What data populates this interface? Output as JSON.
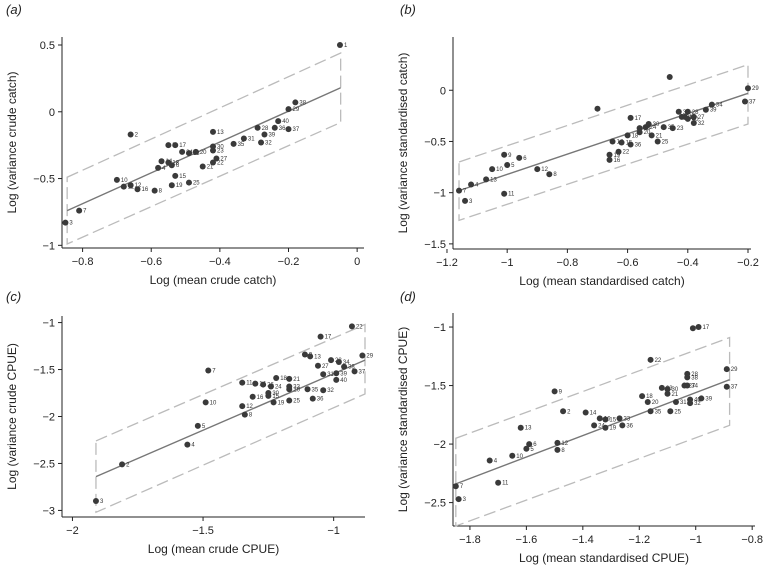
{
  "chart_data": [
    {
      "type": "scatter",
      "panel": "(a)",
      "xlabel": "Log (mean crude catch)",
      "ylabel": "Log (variance crude catch)",
      "xlim": [
        -0.86,
        0.02
      ],
      "ylim": [
        -1.02,
        0.56
      ],
      "xticks": [
        -0.8,
        -0.6,
        -0.4,
        -0.2,
        0
      ],
      "xtick_labels": [
        "−0.8",
        "−0.6",
        "−0.4",
        "−0.2",
        "0"
      ],
      "yticks": [
        -1,
        -0.5,
        0,
        0.5
      ],
      "ytick_labels": [
        "−1",
        "−0.5",
        "0",
        "0.5"
      ],
      "fit": {
        "x": [
          -0.845,
          -0.048
        ],
        "y": [
          -0.74,
          0.18
        ]
      },
      "band_upper": {
        "x": [
          -0.845,
          -0.048
        ],
        "y": [
          -0.49,
          0.44
        ]
      },
      "band_lower": {
        "x": [
          -0.845,
          -0.048
        ],
        "y": [
          -0.99,
          -0.08
        ]
      },
      "points": [
        {
          "label": "1",
          "x": -0.05,
          "y": 0.5
        },
        {
          "label": "2",
          "x": -0.66,
          "y": -0.17
        },
        {
          "label": "3",
          "x": -0.85,
          "y": -0.83
        },
        {
          "label": "4",
          "x": -0.58,
          "y": -0.42
        },
        {
          "label": "5",
          "x": -0.55,
          "y": -0.25
        },
        {
          "label": "6",
          "x": -0.54,
          "y": -0.4
        },
        {
          "label": "7",
          "x": -0.81,
          "y": -0.74
        },
        {
          "label": "8",
          "x": -0.59,
          "y": -0.59
        },
        {
          "label": "10",
          "x": -0.7,
          "y": -0.51
        },
        {
          "label": "11",
          "x": -0.68,
          "y": -0.56
        },
        {
          "label": "12",
          "x": -0.66,
          "y": -0.55
        },
        {
          "label": "13",
          "x": -0.42,
          "y": -0.15
        },
        {
          "label": "14",
          "x": -0.57,
          "y": -0.37
        },
        {
          "label": "15",
          "x": -0.53,
          "y": -0.48
        },
        {
          "label": "16",
          "x": -0.64,
          "y": -0.58
        },
        {
          "label": "17",
          "x": -0.53,
          "y": -0.25
        },
        {
          "label": "18",
          "x": -0.55,
          "y": -0.38
        },
        {
          "label": "19",
          "x": -0.54,
          "y": -0.55
        },
        {
          "label": "20",
          "x": -0.47,
          "y": -0.3
        },
        {
          "label": "21",
          "x": -0.45,
          "y": -0.41
        },
        {
          "label": "22",
          "x": -0.42,
          "y": -0.38
        },
        {
          "label": "23",
          "x": -0.42,
          "y": -0.29
        },
        {
          "label": "24",
          "x": -0.51,
          "y": -0.3
        },
        {
          "label": "25",
          "x": -0.49,
          "y": -0.53
        },
        {
          "label": "27",
          "x": -0.41,
          "y": -0.35
        },
        {
          "label": "28",
          "x": -0.29,
          "y": -0.12
        },
        {
          "label": "29",
          "x": -0.2,
          "y": 0.02
        },
        {
          "label": "30",
          "x": -0.42,
          "y": -0.26
        },
        {
          "label": "31",
          "x": -0.33,
          "y": -0.2
        },
        {
          "label": "32",
          "x": -0.28,
          "y": -0.23
        },
        {
          "label": "33",
          "x": -0.49,
          "y": -0.31
        },
        {
          "label": "35",
          "x": -0.36,
          "y": -0.24
        },
        {
          "label": "36",
          "x": -0.24,
          "y": -0.12
        },
        {
          "label": "37",
          "x": -0.2,
          "y": -0.13
        },
        {
          "label": "38",
          "x": -0.18,
          "y": 0.07
        },
        {
          "label": "39",
          "x": -0.27,
          "y": -0.17
        },
        {
          "label": "40",
          "x": -0.23,
          "y": -0.07
        }
      ]
    },
    {
      "type": "scatter",
      "panel": "(b)",
      "xlabel": "Log (mean standardised catch)",
      "ylabel": "Log (variance standardised catch)",
      "xlim": [
        -1.18,
        -0.19
      ],
      "ylim": [
        -1.55,
        0.52
      ],
      "xticks": [
        -1.2,
        -1,
        -0.8,
        -0.6,
        -0.4,
        -0.2
      ],
      "xtick_labels": [
        "−1.2",
        "−1",
        "−0.8",
        "−0.6",
        "−0.4",
        "−0.2"
      ],
      "yticks": [
        -1.5,
        -1,
        -0.5,
        0
      ],
      "ytick_labels": [
        "−1.5",
        "−1",
        "−0.5",
        "0"
      ],
      "fit": {
        "x": [
          -1.16,
          -0.2
        ],
        "y": [
          -0.98,
          -0.03
        ]
      },
      "band_upper": {
        "x": [
          -1.16,
          -0.2
        ],
        "y": [
          -0.7,
          0.25
        ]
      },
      "band_lower": {
        "x": [
          -1.16,
          -0.2
        ],
        "y": [
          -1.27,
          -0.33
        ]
      },
      "points": [
        {
          "label": "1",
          "x": -0.41,
          "y": -0.26
        },
        {
          "label": "3",
          "x": -1.14,
          "y": -1.08
        },
        {
          "label": "4",
          "x": -1.12,
          "y": -0.92
        },
        {
          "label": "5",
          "x": -1,
          "y": -0.73
        },
        {
          "label": "6",
          "x": -0.96,
          "y": -0.66
        },
        {
          "label": "7",
          "x": -1.16,
          "y": -0.98
        },
        {
          "label": "8",
          "x": -0.86,
          "y": -0.82
        },
        {
          "label": "9",
          "x": -1.01,
          "y": -0.63
        },
        {
          "label": "10",
          "x": -1.05,
          "y": -0.77
        },
        {
          "label": "11",
          "x": -1.01,
          "y": -1.01
        },
        {
          "label": "12",
          "x": -0.9,
          "y": -0.77
        },
        {
          "label": "13",
          "x": -1.07,
          "y": -0.87
        },
        {
          "label": "14",
          "x": -0.65,
          "y": -0.5
        },
        {
          "label": "15",
          "x": -0.62,
          "y": -0.51
        },
        {
          "label": "16",
          "x": -0.66,
          "y": -0.68
        },
        {
          "label": "17",
          "x": -0.59,
          "y": -0.27
        },
        {
          "label": "18",
          "x": -0.6,
          "y": -0.44
        },
        {
          "label": "19",
          "x": -0.66,
          "y": -0.63
        },
        {
          "label": "20",
          "x": -0.56,
          "y": -0.41
        },
        {
          "label": "21",
          "x": -0.52,
          "y": -0.44
        },
        {
          "label": "22",
          "x": -0.63,
          "y": -0.6
        },
        {
          "label": "23",
          "x": -0.45,
          "y": -0.37
        },
        {
          "label": "24",
          "x": -0.54,
          "y": -0.36
        },
        {
          "label": "25",
          "x": -0.5,
          "y": -0.5
        },
        {
          "label": "27",
          "x": -0.38,
          "y": -0.26
        },
        {
          "label": "28",
          "x": -0.4,
          "y": -0.21
        },
        {
          "label": "29",
          "x": -0.2,
          "y": 0.02
        },
        {
          "label": "30",
          "x": -0.53,
          "y": -0.33
        },
        {
          "label": "31",
          "x": -0.42,
          "y": -0.26
        },
        {
          "label": "32",
          "x": -0.38,
          "y": -0.32
        },
        {
          "label": "33",
          "x": -0.56,
          "y": -0.37
        },
        {
          "label": "34",
          "x": -0.32,
          "y": -0.14
        },
        {
          "label": "35",
          "x": -0.48,
          "y": -0.36
        },
        {
          "label": "36",
          "x": -0.59,
          "y": -0.53
        },
        {
          "label": "37",
          "x": -0.21,
          "y": -0.11
        },
        {
          "label": "38",
          "x": -0.43,
          "y": -0.21
        },
        {
          "label": "39",
          "x": -0.34,
          "y": -0.19
        },
        {
          "label": "40",
          "x": -0.4,
          "y": -0.28
        },
        {
          "label": "",
          "x": -0.46,
          "y": 0.13
        },
        {
          "label": "",
          "x": -0.7,
          "y": -0.18
        }
      ]
    },
    {
      "type": "scatter",
      "panel": "(c)",
      "xlabel": "Log (mean crude CPUE)",
      "ylabel": "Log (variance crude CPUE)",
      "xlim": [
        -2.04,
        -0.88
      ],
      "ylim": [
        -3.07,
        -0.93
      ],
      "xticks": [
        -2,
        -1.5,
        -1
      ],
      "xtick_labels": [
        "−2",
        "−1.5",
        "−1"
      ],
      "yticks": [
        -3,
        -2.5,
        -2,
        -1.5,
        -1
      ],
      "ytick_labels": [
        "−3",
        "−2.5",
        "−2",
        "−1.5",
        "−1"
      ],
      "fit": {
        "x": [
          -1.91,
          -0.88
        ],
        "y": [
          -2.64,
          -1.4
        ]
      },
      "band_upper": {
        "x": [
          -1.91,
          -0.88
        ],
        "y": [
          -2.26,
          -1.02
        ]
      },
      "band_lower": {
        "x": [
          -1.91,
          -0.88
        ],
        "y": [
          -3.02,
          -1.76
        ]
      },
      "points": [
        {
          "label": "2",
          "x": -1.81,
          "y": -2.51
        },
        {
          "label": "3",
          "x": -1.91,
          "y": -2.9
        },
        {
          "label": "4",
          "x": -1.56,
          "y": -2.3
        },
        {
          "label": "5",
          "x": -1.52,
          "y": -2.1
        },
        {
          "label": "7",
          "x": -1.48,
          "y": -1.51
        },
        {
          "label": "8",
          "x": -1.34,
          "y": -1.98
        },
        {
          "label": "9",
          "x": -1.11,
          "y": -1.34
        },
        {
          "label": "10",
          "x": -1.49,
          "y": -1.85
        },
        {
          "label": "11",
          "x": -1.35,
          "y": -1.64
        },
        {
          "label": "12",
          "x": -1.35,
          "y": -1.89
        },
        {
          "label": "13",
          "x": -1.09,
          "y": -1.36
        },
        {
          "label": "14",
          "x": -1.3,
          "y": -1.65
        },
        {
          "label": "15",
          "x": -1.25,
          "y": -1.78
        },
        {
          "label": "16",
          "x": -1.31,
          "y": -1.79
        },
        {
          "label": "17",
          "x": -1.05,
          "y": -1.15
        },
        {
          "label": "18",
          "x": -1.22,
          "y": -1.59
        },
        {
          "label": "19",
          "x": -1.23,
          "y": -1.85
        },
        {
          "label": "20",
          "x": -1.17,
          "y": -1.71
        },
        {
          "label": "21",
          "x": -1.17,
          "y": -1.6
        },
        {
          "label": "22",
          "x": -0.93,
          "y": -1.04
        },
        {
          "label": "24",
          "x": -1.24,
          "y": -1.68
        },
        {
          "label": "25",
          "x": -1.17,
          "y": -1.83
        },
        {
          "label": "26",
          "x": -1.27,
          "y": -1.66
        },
        {
          "label": "27",
          "x": -1.06,
          "y": -1.46
        },
        {
          "label": "28",
          "x": -1.01,
          "y": -1.4
        },
        {
          "label": "29",
          "x": -0.89,
          "y": -1.35
        },
        {
          "label": "30",
          "x": -1.25,
          "y": -1.75
        },
        {
          "label": "31",
          "x": -1.04,
          "y": -1.55
        },
        {
          "label": "32",
          "x": -1.04,
          "y": -1.72
        },
        {
          "label": "33",
          "x": -1.17,
          "y": -1.68
        },
        {
          "label": "34",
          "x": -0.98,
          "y": -1.42
        },
        {
          "label": "35",
          "x": -1.1,
          "y": -1.71
        },
        {
          "label": "36",
          "x": -1.08,
          "y": -1.81
        },
        {
          "label": "37",
          "x": -0.92,
          "y": -1.52
        },
        {
          "label": "38",
          "x": -0.96,
          "y": -1.47
        },
        {
          "label": "39",
          "x": -0.99,
          "y": -1.54
        },
        {
          "label": "40",
          "x": -0.99,
          "y": -1.61
        }
      ]
    },
    {
      "type": "scatter",
      "panel": "(d)",
      "xlabel": "Log (mean standardised CPUE)",
      "ylabel": "Log (variance standardised CPUE)",
      "xlim": [
        -1.86,
        -0.79
      ],
      "ylim": [
        -2.7,
        -0.88
      ],
      "xticks": [
        -1.8,
        -1.6,
        -1.4,
        -1.2,
        -1,
        -0.8
      ],
      "xtick_labels": [
        "−1.8",
        "−1.6",
        "−1.4",
        "−1.2",
        "−1",
        "−0.8"
      ],
      "yticks": [
        -2.5,
        -2,
        -1.5,
        -1
      ],
      "ytick_labels": [
        "−2.5",
        "−2",
        "−1.5",
        "−1"
      ],
      "fit": {
        "x": [
          -1.85,
          -0.88
        ],
        "y": [
          -2.34,
          -1.45
        ]
      },
      "band_upper": {
        "x": [
          -1.85,
          -0.88
        ],
        "y": [
          -1.95,
          -1.09
        ]
      },
      "band_lower": {
        "x": [
          -1.85,
          -0.88
        ],
        "y": [
          -2.7,
          -1.84
        ]
      },
      "points": [
        {
          "label": "2",
          "x": -1.47,
          "y": -1.72
        },
        {
          "label": "3",
          "x": -1.84,
          "y": -2.47
        },
        {
          "label": "4",
          "x": -1.73,
          "y": -2.14
        },
        {
          "label": "5",
          "x": -1.6,
          "y": -2.04
        },
        {
          "label": "6",
          "x": -1.59,
          "y": -2.0
        },
        {
          "label": "7",
          "x": -1.85,
          "y": -2.36
        },
        {
          "label": "8",
          "x": -1.49,
          "y": -2.05
        },
        {
          "label": "9",
          "x": -1.5,
          "y": -1.55
        },
        {
          "label": "10",
          "x": -1.65,
          "y": -2.1
        },
        {
          "label": "11",
          "x": -1.7,
          "y": -2.33
        },
        {
          "label": "12",
          "x": -1.49,
          "y": -1.99
        },
        {
          "label": "13",
          "x": -1.62,
          "y": -1.86
        },
        {
          "label": "14",
          "x": -1.39,
          "y": -1.73
        },
        {
          "label": "15",
          "x": -1.32,
          "y": -1.79
        },
        {
          "label": "16",
          "x": -1.34,
          "y": -1.78
        },
        {
          "label": "17",
          "x": -0.99,
          "y": -1.0
        },
        {
          "label": "18",
          "x": -1.19,
          "y": -1.59
        },
        {
          "label": "19",
          "x": -1.32,
          "y": -1.86
        },
        {
          "label": "20",
          "x": -1.17,
          "y": -1.64
        },
        {
          "label": "21",
          "x": -1.1,
          "y": -1.57
        },
        {
          "label": "22",
          "x": -1.16,
          "y": -1.28
        },
        {
          "label": "23",
          "x": -1.12,
          "y": -1.52
        },
        {
          "label": "24",
          "x": -1.36,
          "y": -1.84
        },
        {
          "label": "25",
          "x": -1.09,
          "y": -1.72
        },
        {
          "label": "27",
          "x": -1.04,
          "y": -1.5
        },
        {
          "label": "28",
          "x": -1.03,
          "y": -1.4
        },
        {
          "label": "29",
          "x": -0.89,
          "y": -1.36
        },
        {
          "label": "30",
          "x": -1.1,
          "y": -1.53
        },
        {
          "label": "31",
          "x": -1.07,
          "y": -1.64
        },
        {
          "label": "32",
          "x": -1.02,
          "y": -1.65
        },
        {
          "label": "33",
          "x": -1.27,
          "y": -1.78
        },
        {
          "label": "34",
          "x": -1.03,
          "y": -1.5
        },
        {
          "label": "35",
          "x": -1.16,
          "y": -1.72
        },
        {
          "label": "36",
          "x": -1.26,
          "y": -1.84
        },
        {
          "label": "37",
          "x": -0.89,
          "y": -1.51
        },
        {
          "label": "38",
          "x": -1.03,
          "y": -1.43
        },
        {
          "label": "39",
          "x": -0.98,
          "y": -1.61
        },
        {
          "label": "40",
          "x": -1.02,
          "y": -1.62
        },
        {
          "label": "",
          "x": -1.01,
          "y": -1.01
        }
      ]
    }
  ]
}
